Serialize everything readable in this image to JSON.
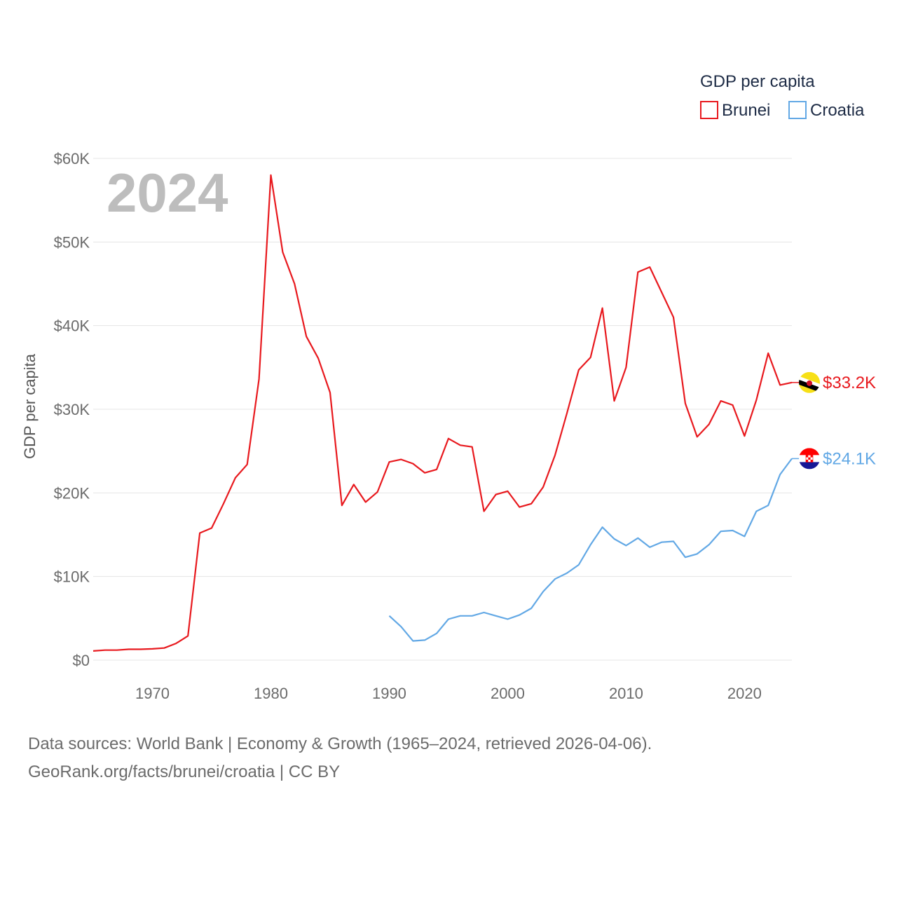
{
  "chart_data": {
    "type": "line",
    "title": "GDP per capita",
    "xlabel": "",
    "ylabel": "GDP per capita",
    "year_label": "2024",
    "xlim": [
      1965,
      2024
    ],
    "ylim": [
      0,
      60000
    ],
    "x_ticks": [
      1970,
      1980,
      1990,
      2000,
      2010,
      2020
    ],
    "y_ticks": [
      {
        "value": 0,
        "label": "$0"
      },
      {
        "value": 10000,
        "label": "$10K"
      },
      {
        "value": 20000,
        "label": "$20K"
      },
      {
        "value": 30000,
        "label": "$30K"
      },
      {
        "value": 40000,
        "label": "$40K"
      },
      {
        "value": 50000,
        "label": "$50K"
      },
      {
        "value": 60000,
        "label": "$60K"
      }
    ],
    "legend": {
      "title": "GDP per capita",
      "position": "top-right"
    },
    "series": [
      {
        "name": "Brunei",
        "color": "#e8191e",
        "end_label": "$33.2K",
        "flag": "brunei-flag",
        "points": [
          [
            1965,
            1100
          ],
          [
            1966,
            1200
          ],
          [
            1967,
            1200
          ],
          [
            1968,
            1300
          ],
          [
            1969,
            1300
          ],
          [
            1970,
            1350
          ],
          [
            1971,
            1450
          ],
          [
            1972,
            2000
          ],
          [
            1973,
            2900
          ],
          [
            1974,
            15200
          ],
          [
            1975,
            15800
          ],
          [
            1976,
            18700
          ],
          [
            1977,
            21800
          ],
          [
            1978,
            23400
          ],
          [
            1979,
            33600
          ],
          [
            1980,
            58000
          ],
          [
            1981,
            48800
          ],
          [
            1982,
            45000
          ],
          [
            1983,
            38700
          ],
          [
            1984,
            36100
          ],
          [
            1985,
            32000
          ],
          [
            1986,
            18500
          ],
          [
            1987,
            21000
          ],
          [
            1988,
            18900
          ],
          [
            1989,
            20100
          ],
          [
            1990,
            23700
          ],
          [
            1991,
            24000
          ],
          [
            1992,
            23500
          ],
          [
            1993,
            22400
          ],
          [
            1994,
            22800
          ],
          [
            1995,
            26500
          ],
          [
            1996,
            25700
          ],
          [
            1997,
            25500
          ],
          [
            1998,
            17800
          ],
          [
            1999,
            19800
          ],
          [
            2000,
            20200
          ],
          [
            2001,
            18300
          ],
          [
            2002,
            18700
          ],
          [
            2003,
            20700
          ],
          [
            2004,
            24500
          ],
          [
            2005,
            29500
          ],
          [
            2006,
            34700
          ],
          [
            2007,
            36200
          ],
          [
            2008,
            42100
          ],
          [
            2009,
            31000
          ],
          [
            2010,
            35000
          ],
          [
            2011,
            46400
          ],
          [
            2012,
            47000
          ],
          [
            2013,
            44000
          ],
          [
            2014,
            41000
          ],
          [
            2015,
            30700
          ],
          [
            2016,
            26700
          ],
          [
            2017,
            28200
          ],
          [
            2018,
            31000
          ],
          [
            2019,
            30500
          ],
          [
            2020,
            26800
          ],
          [
            2021,
            31100
          ],
          [
            2022,
            36700
          ],
          [
            2023,
            32900
          ],
          [
            2024,
            33200
          ]
        ]
      },
      {
        "name": "Croatia",
        "color": "#62a8e5",
        "end_label": "$24.1K",
        "flag": "croatia-flag",
        "points": [
          [
            1990,
            5300
          ],
          [
            1991,
            4000
          ],
          [
            1992,
            2300
          ],
          [
            1993,
            2400
          ],
          [
            1994,
            3200
          ],
          [
            1995,
            4900
          ],
          [
            1996,
            5300
          ],
          [
            1997,
            5300
          ],
          [
            1998,
            5700
          ],
          [
            1999,
            5300
          ],
          [
            2000,
            4900
          ],
          [
            2001,
            5400
          ],
          [
            2002,
            6200
          ],
          [
            2003,
            8200
          ],
          [
            2004,
            9700
          ],
          [
            2005,
            10400
          ],
          [
            2006,
            11400
          ],
          [
            2007,
            13800
          ],
          [
            2008,
            15900
          ],
          [
            2009,
            14500
          ],
          [
            2010,
            13700
          ],
          [
            2011,
            14600
          ],
          [
            2012,
            13500
          ],
          [
            2013,
            14100
          ],
          [
            2014,
            14200
          ],
          [
            2015,
            12300
          ],
          [
            2016,
            12700
          ],
          [
            2017,
            13800
          ],
          [
            2018,
            15400
          ],
          [
            2019,
            15500
          ],
          [
            2020,
            14800
          ],
          [
            2021,
            17800
          ],
          [
            2022,
            18500
          ],
          [
            2023,
            22200
          ],
          [
            2024,
            24100
          ]
        ]
      }
    ]
  },
  "footer": {
    "line1": "Data sources: World Bank | Economy & Growth (1965–2024, retrieved 2026-04-06).",
    "line2": "GeoRank.org/facts/brunei/croatia | CC BY"
  }
}
